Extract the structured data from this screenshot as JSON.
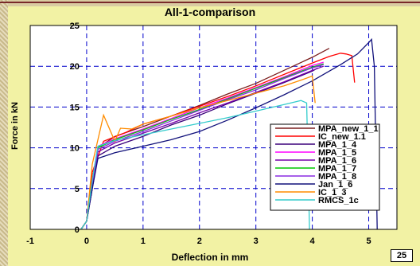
{
  "chart_data": {
    "type": "line",
    "title": "All-1-comparison",
    "xlabel": "Deflection in mm",
    "ylabel": "Force in kN",
    "xlim": [
      -1,
      5.5
    ],
    "ylim": [
      0,
      25
    ],
    "x_ticks": [
      "-1",
      "0",
      "1",
      "2",
      "3",
      "4",
      "5"
    ],
    "y_ticks": [
      "0",
      "5",
      "10",
      "15",
      "20",
      "25"
    ],
    "grid": true,
    "legend_position": "bottom-right",
    "series": [
      {
        "name": "MPA_new_1_1",
        "color": "#7b1e1e",
        "x": [
          -0.1,
          0.0,
          0.1,
          0.2,
          0.5,
          1.0,
          1.5,
          2.0,
          2.5,
          3.0,
          3.5,
          4.0,
          4.3
        ],
        "y": [
          0,
          1,
          6,
          10,
          11.4,
          12.6,
          13.9,
          15.2,
          16.6,
          17.9,
          19.5,
          21.1,
          22.2
        ]
      },
      {
        "name": "IC_new_1.1",
        "color": "#ff0000",
        "x": [
          -0.1,
          0.0,
          0.1,
          0.3,
          0.7,
          1.0,
          1.5,
          2.0,
          2.5,
          3.0,
          3.5,
          4.0,
          4.3,
          4.5,
          4.6,
          4.7,
          4.75
        ],
        "y": [
          0,
          1,
          7,
          10.8,
          11.9,
          12.9,
          13.9,
          15.1,
          16.3,
          17.6,
          19.0,
          20.4,
          21.2,
          21.6,
          21.5,
          21.3,
          18.0
        ]
      },
      {
        "name": "MPA_1_4",
        "color": "#3a007a",
        "x": [
          -0.1,
          0.0,
          0.1,
          0.2,
          0.5,
          1.0,
          1.5,
          2.0,
          2.5,
          3.0,
          3.5,
          4.0,
          4.1
        ],
        "y": [
          0,
          1,
          5,
          9,
          10.2,
          11.4,
          12.8,
          14.0,
          15.4,
          16.7,
          18.0,
          19.4,
          19.8
        ]
      },
      {
        "name": "MPA_1_5",
        "color": "#ff00ff",
        "x": [
          -0.1,
          0.0,
          0.1,
          0.2,
          0.5,
          1.0,
          1.5,
          2.0,
          2.5,
          3.0,
          3.5,
          4.0,
          4.2
        ],
        "y": [
          0,
          1,
          6,
          10.2,
          11.1,
          12.3,
          13.6,
          14.9,
          16.1,
          17.4,
          18.7,
          20.1,
          20.5
        ]
      },
      {
        "name": "MPA_1_6",
        "color": "#7700aa",
        "x": [
          -0.1,
          0.0,
          0.1,
          0.2,
          0.5,
          1.0,
          1.5,
          2.0,
          2.5,
          3.0,
          3.5,
          4.0,
          4.2
        ],
        "y": [
          0,
          1,
          5,
          9.5,
          10.6,
          11.8,
          13.0,
          14.3,
          15.5,
          16.8,
          18.1,
          19.5,
          20.0
        ]
      },
      {
        "name": "MPA_1_7",
        "color": "#00c800",
        "x": [
          -0.1,
          0.0,
          0.1,
          0.2,
          0.5,
          1.0,
          1.5,
          2.0,
          2.5,
          3.0,
          3.5,
          4.0,
          4.2
        ],
        "y": [
          0,
          1,
          6,
          10,
          11.0,
          12.2,
          13.5,
          14.7,
          16.0,
          17.3,
          18.6,
          19.9,
          20.3
        ]
      },
      {
        "name": "MPA_1_8",
        "color": "#8a2be2",
        "x": [
          -0.1,
          0.0,
          0.1,
          0.2,
          0.5,
          1.0,
          1.5,
          2.0,
          2.5,
          3.0,
          3.5,
          4.0,
          4.2
        ],
        "y": [
          0,
          1,
          5.5,
          9.8,
          10.8,
          12.0,
          13.3,
          14.6,
          15.9,
          17.1,
          18.5,
          19.8,
          20.2
        ]
      },
      {
        "name": "Jan_1_6",
        "color": "#10107a",
        "x": [
          -0.1,
          0.0,
          0.1,
          0.2,
          0.5,
          1.0,
          1.5,
          2.0,
          2.5,
          3.0,
          3.5,
          4.0,
          4.5,
          4.8,
          5.0,
          5.05,
          5.1,
          5.15
        ],
        "y": [
          0,
          1,
          5,
          8.7,
          9.4,
          10.2,
          11.0,
          12.0,
          13.4,
          14.9,
          16.5,
          18.2,
          20.2,
          21.5,
          22.9,
          23.3,
          20.0,
          0
        ]
      },
      {
        "name": "IC_1_3",
        "color": "#ff8c00",
        "x": [
          -0.1,
          0.0,
          0.1,
          0.3,
          0.5,
          0.6,
          0.8,
          1.0,
          1.5,
          2.0,
          2.5,
          3.0,
          3.5,
          3.8,
          4.0,
          4.05
        ],
        "y": [
          0,
          1,
          8,
          14.0,
          10.8,
          12.4,
          12.3,
          12.9,
          13.9,
          14.9,
          15.8,
          16.7,
          17.6,
          18.3,
          18.8,
          15.5
        ]
      },
      {
        "name": "RMCS_1c",
        "color": "#33cccc",
        "x": [
          -0.1,
          0.0,
          0.1,
          0.2,
          0.5,
          1.0,
          1.5,
          2.0,
          2.5,
          3.0,
          3.5,
          3.8,
          3.9,
          3.95
        ],
        "y": [
          0,
          1,
          6,
          10.2,
          10.9,
          11.6,
          12.3,
          13.0,
          13.7,
          14.5,
          15.3,
          15.8,
          15.5,
          0
        ]
      }
    ]
  }
}
